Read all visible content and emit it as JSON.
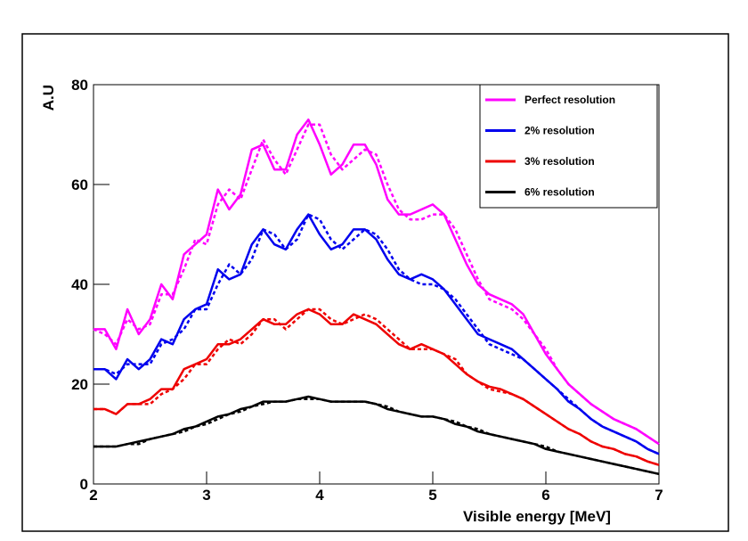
{
  "chart_data": {
    "type": "line",
    "x_label": "Visible energy [MeV]",
    "y_label": "A.U",
    "x": [
      2.0,
      2.1,
      2.2,
      2.3,
      2.4,
      2.5,
      2.6,
      2.7,
      2.8,
      2.9,
      3.0,
      3.1,
      3.2,
      3.3,
      3.4,
      3.5,
      3.6,
      3.7,
      3.8,
      3.9,
      4.0,
      4.1,
      4.2,
      4.3,
      4.4,
      4.5,
      4.6,
      4.7,
      4.8,
      4.9,
      5.0,
      5.1,
      5.2,
      5.3,
      5.4,
      5.5,
      5.6,
      5.7,
      5.8,
      5.9,
      6.0,
      6.1,
      6.2,
      6.3,
      6.4,
      6.5,
      6.6,
      6.7,
      6.8,
      6.9,
      7.0
    ],
    "xlim": [
      2,
      7
    ],
    "xticks": [
      2,
      3,
      4,
      5,
      6,
      7
    ],
    "ylim": [
      0,
      80
    ],
    "yticks": [
      0,
      20,
      40,
      60,
      80
    ],
    "legend": "top-right",
    "series": [
      {
        "name": "Perfect resolution",
        "color": "#ff00ff",
        "dashed": false,
        "values": [
          31,
          31,
          27,
          35,
          30,
          33,
          40,
          37,
          46,
          48,
          50,
          59,
          55,
          58,
          67,
          68,
          63,
          63,
          70,
          73,
          68,
          62,
          64,
          68,
          68,
          64,
          57,
          54,
          54,
          55,
          56,
          54,
          49,
          44,
          40,
          38,
          37,
          36,
          34,
          30,
          26,
          23,
          20,
          18,
          16,
          14.5,
          13,
          12,
          11,
          9.5,
          8
        ]
      },
      {
        "name": "2% resolution",
        "color": "#0000ee",
        "dashed": false,
        "values": [
          23,
          23,
          21,
          25,
          23,
          25,
          29,
          28,
          33,
          35,
          36,
          43,
          41,
          42,
          48,
          51,
          48,
          47,
          51,
          54,
          50,
          47,
          48,
          51,
          51,
          49,
          45,
          42,
          41,
          42,
          41,
          39,
          36,
          33,
          30,
          29,
          28,
          27,
          25,
          23,
          21,
          19,
          16.5,
          15,
          13,
          11.5,
          10.5,
          9.5,
          8.5,
          7,
          6
        ]
      },
      {
        "name": "3% resolution",
        "color": "#ee0000",
        "dashed": false,
        "values": [
          15,
          15,
          14,
          16,
          16,
          17,
          19,
          19,
          23,
          24,
          25,
          28,
          28,
          29,
          31,
          33,
          32,
          32,
          34,
          35,
          34,
          32,
          32,
          34,
          33,
          32,
          30,
          28,
          27,
          28,
          27,
          26,
          24,
          22,
          20.5,
          19.5,
          19,
          18,
          17,
          15.5,
          14,
          12.5,
          11,
          10,
          8.5,
          7.5,
          7,
          6,
          5.5,
          4.5,
          3.8
        ]
      },
      {
        "name": "6% resolution",
        "color": "#000000",
        "dashed": false,
        "values": [
          7.5,
          7.5,
          7.5,
          8,
          8.5,
          9,
          9.5,
          10,
          11,
          11.5,
          12.5,
          13.5,
          14,
          15,
          15.5,
          16.5,
          16.5,
          16.5,
          17,
          17.5,
          17,
          16.5,
          16.5,
          16.5,
          16.5,
          16,
          15,
          14.5,
          14,
          13.5,
          13.5,
          13,
          12,
          11.5,
          10.5,
          10,
          9.5,
          9,
          8.5,
          8,
          7,
          6.5,
          6,
          5.5,
          5,
          4.5,
          4,
          3.5,
          3,
          2.5,
          2
        ]
      },
      {
        "color": "#ff00ff",
        "dashed": true,
        "values": [
          31,
          30,
          28,
          33,
          31,
          32,
          38,
          38,
          43,
          49,
          48,
          56,
          59,
          57,
          63,
          69,
          65,
          62,
          67,
          72,
          72,
          66,
          63,
          65,
          67,
          66,
          60,
          55,
          53,
          53,
          54,
          54,
          51,
          46,
          41,
          37,
          36,
          35,
          33,
          30,
          27,
          23,
          20,
          18,
          16,
          14.5,
          13,
          12,
          11,
          9.5,
          8
        ]
      },
      {
        "color": "#0000ee",
        "dashed": true,
        "values": [
          23,
          23,
          22,
          24,
          24,
          24,
          28,
          29,
          31,
          35,
          35,
          40,
          44,
          42,
          45,
          51,
          50,
          47,
          49,
          54,
          53,
          49,
          47,
          49,
          51,
          50,
          47,
          43,
          41,
          40,
          40,
          39,
          37,
          34,
          31,
          28,
          27,
          26,
          25,
          23,
          21,
          19,
          17,
          15,
          13,
          11.5,
          10.5,
          9.5,
          8.5,
          7,
          6
        ]
      },
      {
        "color": "#ee0000",
        "dashed": true,
        "values": [
          15,
          15,
          14,
          16,
          16,
          16,
          18,
          19,
          21,
          24,
          24,
          27,
          29,
          28,
          30,
          33,
          33,
          31,
          33,
          35,
          35,
          33,
          32,
          33,
          34,
          33,
          31,
          29,
          27,
          27,
          27,
          26,
          25,
          22,
          20.5,
          19,
          18.5,
          18,
          17,
          15.5,
          14,
          12.5,
          11,
          10,
          8.5,
          7.5,
          7,
          6,
          5.5,
          4.5,
          3.8
        ]
      },
      {
        "color": "#000000",
        "dashed": true,
        "values": [
          7.5,
          7.5,
          7.5,
          8,
          8,
          9,
          9.5,
          10,
          10.5,
          11.5,
          12,
          13,
          14,
          14.5,
          15.5,
          16,
          16.5,
          16.5,
          17,
          17,
          17,
          16.5,
          16.5,
          16.5,
          16.5,
          16,
          15.5,
          14.5,
          14,
          13.5,
          13.5,
          13,
          12.5,
          11.5,
          11,
          10,
          9.5,
          9,
          8.5,
          8,
          7.5,
          6.5,
          6,
          5.5,
          5,
          4.5,
          4,
          3.5,
          3,
          2.5,
          2
        ]
      }
    ]
  }
}
